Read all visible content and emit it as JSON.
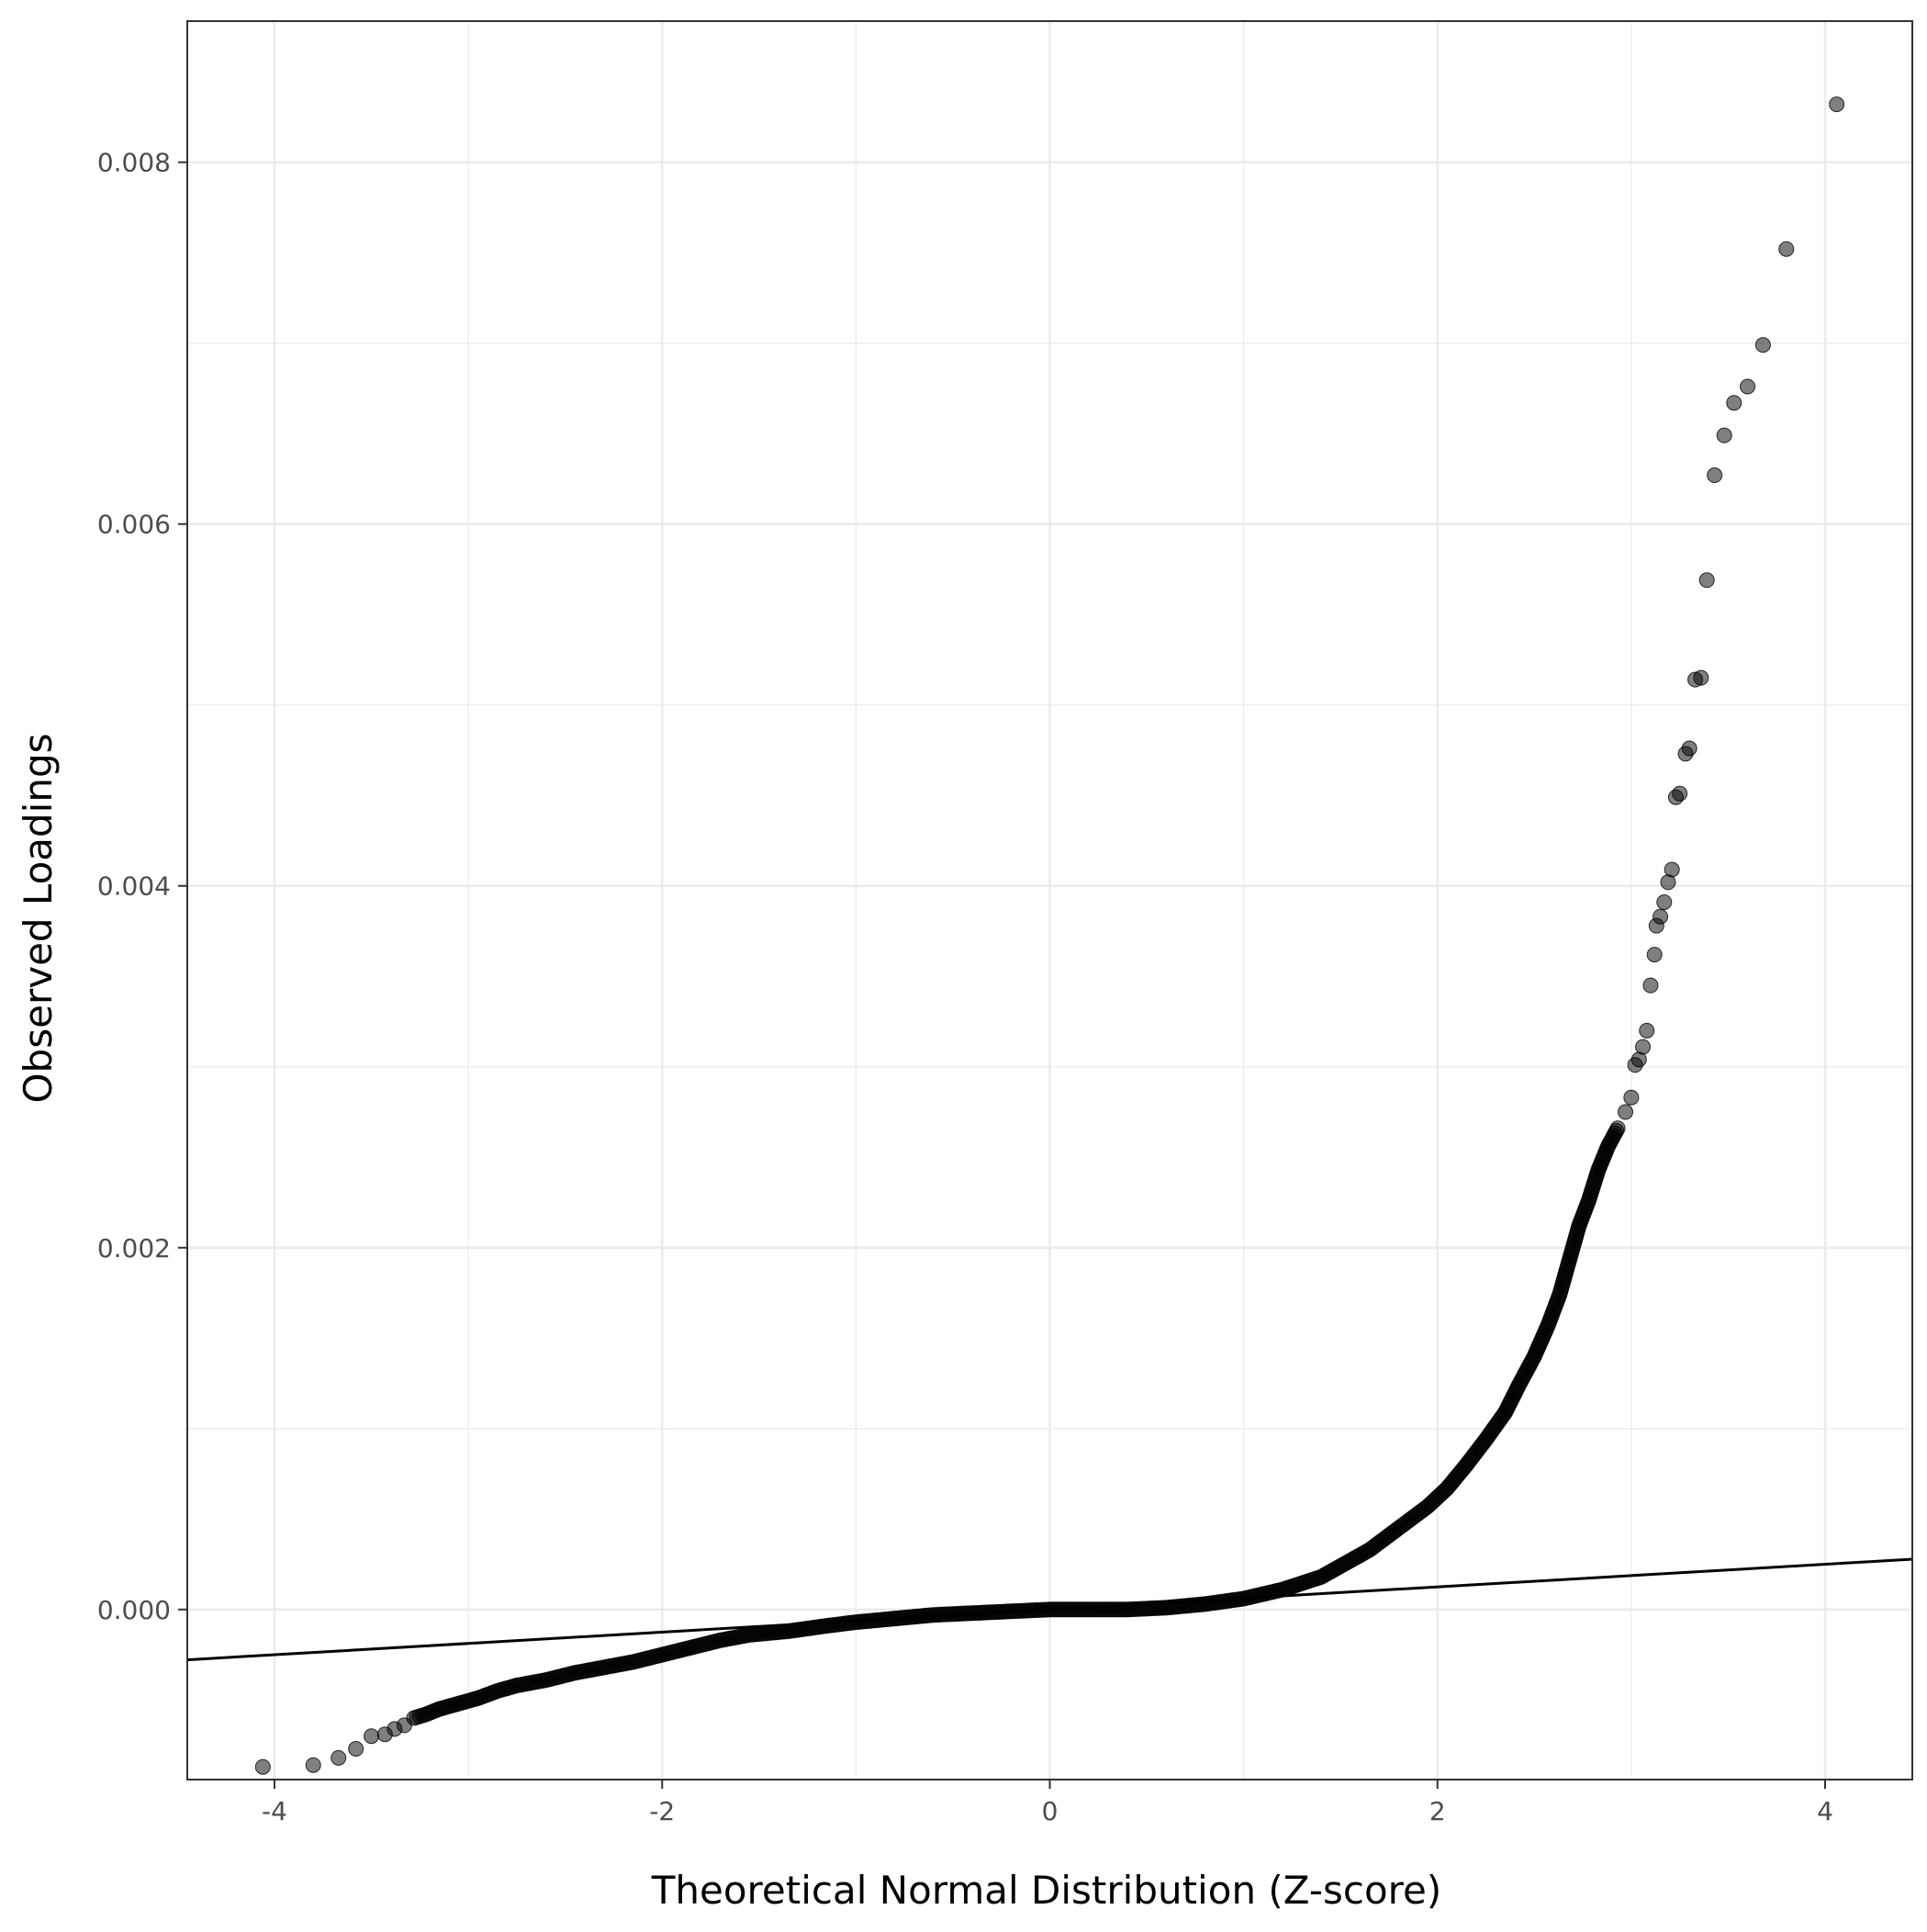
{
  "chart_data": {
    "type": "scatter",
    "title": "",
    "xlabel": "Theoretical Normal Distribution (Z-score)",
    "ylabel": "Observed Loadings",
    "xlim": [
      -4.45,
      4.45
    ],
    "ylim": [
      -0.00094,
      0.00878
    ],
    "x_ticks": [
      -4,
      -2,
      0,
      2,
      4
    ],
    "x_tick_labels": [
      "-4",
      "-2",
      "0",
      "2",
      "4"
    ],
    "y_ticks": [
      0.0,
      0.002,
      0.004,
      0.006,
      0.008
    ],
    "y_tick_labels": [
      "0.000",
      "0.002",
      "0.004",
      "0.006",
      "0.008"
    ],
    "grid": true,
    "reference_line": {
      "intercept": 0.0,
      "slope": 6.25e-05
    },
    "colors": {
      "points": "#000000",
      "point_opacity": 0.5,
      "line": "#000000",
      "grid": "#ebebeb",
      "panel_border": "#333333"
    },
    "series": [
      {
        "points": [
          [
            -4.06,
            -0.00087
          ],
          [
            -3.8,
            -0.00086
          ],
          [
            -3.67,
            -0.00082
          ],
          [
            -3.58,
            -0.00077
          ],
          [
            -3.5,
            -0.0007
          ],
          [
            -3.43,
            -0.00069
          ],
          [
            -3.38,
            -0.00066
          ],
          [
            -3.33,
            -0.00064
          ],
          [
            -3.28,
            -0.0006
          ],
          [
            -3.22,
            -0.00058
          ],
          [
            -3.15,
            -0.00055
          ],
          [
            -3.05,
            -0.00052
          ],
          [
            -2.95,
            -0.00049
          ],
          [
            -2.85,
            -0.00045
          ],
          [
            -2.75,
            -0.00042
          ],
          [
            -2.6,
            -0.00039
          ],
          [
            -2.45,
            -0.00035
          ],
          [
            -2.3,
            -0.00032
          ],
          [
            -2.15,
            -0.00029
          ],
          [
            -2.0,
            -0.00025
          ],
          [
            -1.85,
            -0.00021
          ],
          [
            -1.7,
            -0.00017
          ],
          [
            -1.55,
            -0.00014
          ],
          [
            -1.35,
            -0.00012
          ],
          [
            -1.15,
            -9e-05
          ],
          [
            -1.0,
            -7e-05
          ],
          [
            -0.8,
            -5e-05
          ],
          [
            -0.6,
            -3e-05
          ],
          [
            -0.4,
            -2e-05
          ],
          [
            -0.2,
            -1e-05
          ],
          [
            0.0,
            0.0
          ],
          [
            0.2,
            0.0
          ],
          [
            0.4,
            0.0
          ],
          [
            0.6,
            1e-05
          ],
          [
            0.8,
            3e-05
          ],
          [
            1.0,
            6e-05
          ],
          [
            1.2,
            0.00011
          ],
          [
            1.4,
            0.00018
          ],
          [
            1.55,
            0.00027
          ],
          [
            1.65,
            0.00033
          ],
          [
            1.75,
            0.00041
          ],
          [
            1.85,
            0.00049
          ],
          [
            1.95,
            0.00057
          ],
          [
            2.05,
            0.00067
          ],
          [
            2.15,
            0.0008
          ],
          [
            2.25,
            0.00094
          ],
          [
            2.35,
            0.00109
          ],
          [
            2.42,
            0.00124
          ],
          [
            2.5,
            0.0014
          ],
          [
            2.57,
            0.00157
          ],
          [
            2.63,
            0.00174
          ],
          [
            2.68,
            0.00193
          ],
          [
            2.73,
            0.00212
          ],
          [
            2.78,
            0.00226
          ],
          [
            2.83,
            0.00243
          ],
          [
            2.88,
            0.00256
          ],
          [
            2.93,
            0.00266
          ],
          [
            2.97,
            0.00275
          ],
          [
            3.0,
            0.00283
          ],
          [
            3.02,
            0.00301
          ],
          [
            3.04,
            0.00304
          ],
          [
            3.06,
            0.00311
          ],
          [
            3.08,
            0.0032
          ],
          [
            3.1,
            0.00345
          ],
          [
            3.12,
            0.00362
          ],
          [
            3.13,
            0.00378
          ],
          [
            3.15,
            0.00383
          ],
          [
            3.17,
            0.00391
          ],
          [
            3.19,
            0.00402
          ],
          [
            3.21,
            0.00409
          ],
          [
            3.23,
            0.00449
          ],
          [
            3.25,
            0.00451
          ],
          [
            3.28,
            0.00473
          ],
          [
            3.3,
            0.00476
          ],
          [
            3.33,
            0.00514
          ],
          [
            3.36,
            0.00515
          ],
          [
            3.39,
            0.00569
          ],
          [
            3.43,
            0.00627
          ],
          [
            3.48,
            0.00649
          ],
          [
            3.53,
            0.00667
          ],
          [
            3.6,
            0.00676
          ],
          [
            3.68,
            0.00699
          ],
          [
            3.8,
            0.00752
          ],
          [
            4.06,
            0.00832
          ]
        ]
      }
    ]
  }
}
